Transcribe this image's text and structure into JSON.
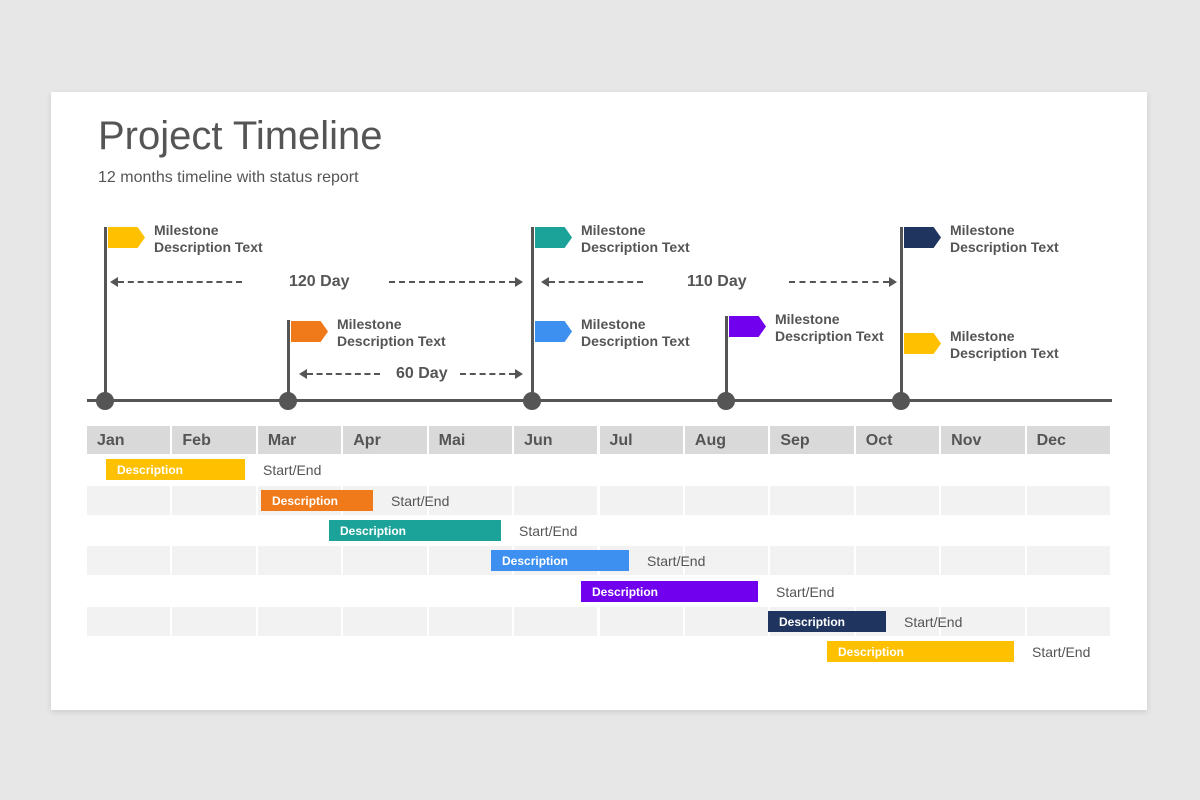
{
  "header": {
    "title": "Project Timeline",
    "subtitle": "12 months timeline with status report"
  },
  "colors": {
    "yellow": "#FFC000",
    "orange": "#F07A1A",
    "teal": "#1BA39A",
    "blue": "#3D8FF0",
    "purple": "#7000EE",
    "navy": "#1F3560",
    "axis": "#555555",
    "header_bg": "#d9d9d9",
    "row_alt": "#f2f2f2"
  },
  "milestones": [
    {
      "line1": "Milestone",
      "line2": "Description Text",
      "color": "#FFC000"
    },
    {
      "line1": "Milestone",
      "line2": "Description Text",
      "color": "#F07A1A"
    },
    {
      "line1": "Milestone",
      "line2": "Description Text",
      "color": "#1BA39A"
    },
    {
      "line1": "Milestone",
      "line2": "Description Text",
      "color": "#3D8FF0"
    },
    {
      "line1": "Milestone",
      "line2": "Description Text",
      "color": "#7000EE"
    },
    {
      "line1": "Milestone",
      "line2": "Description Text",
      "color": "#1F3560"
    },
    {
      "line1": "Milestone",
      "line2": "Description Text",
      "color": "#FFC000"
    }
  ],
  "spans": [
    {
      "label": "120 Day"
    },
    {
      "label": "60 Day"
    },
    {
      "label": "110 Day"
    }
  ],
  "months": [
    "Jan",
    "Feb",
    "Mar",
    "Apr",
    "Mai",
    "Jun",
    "Jul",
    "Aug",
    "Sep",
    "Oct",
    "Nov",
    "Dec"
  ],
  "tasks": [
    {
      "label": "Description",
      "status": "Start/End",
      "color": "#FFC000"
    },
    {
      "label": "Description",
      "status": "Start/End",
      "color": "#F07A1A"
    },
    {
      "label": "Description",
      "status": "Start/End",
      "color": "#1BA39A"
    },
    {
      "label": "Description",
      "status": "Start/End",
      "color": "#3D8FF0"
    },
    {
      "label": "Description",
      "status": "Start/End",
      "color": "#7000EE"
    },
    {
      "label": "Description",
      "status": "Start/End",
      "color": "#1F3560"
    },
    {
      "label": "Description",
      "status": "Start/End",
      "color": "#FFC000"
    }
  ]
}
